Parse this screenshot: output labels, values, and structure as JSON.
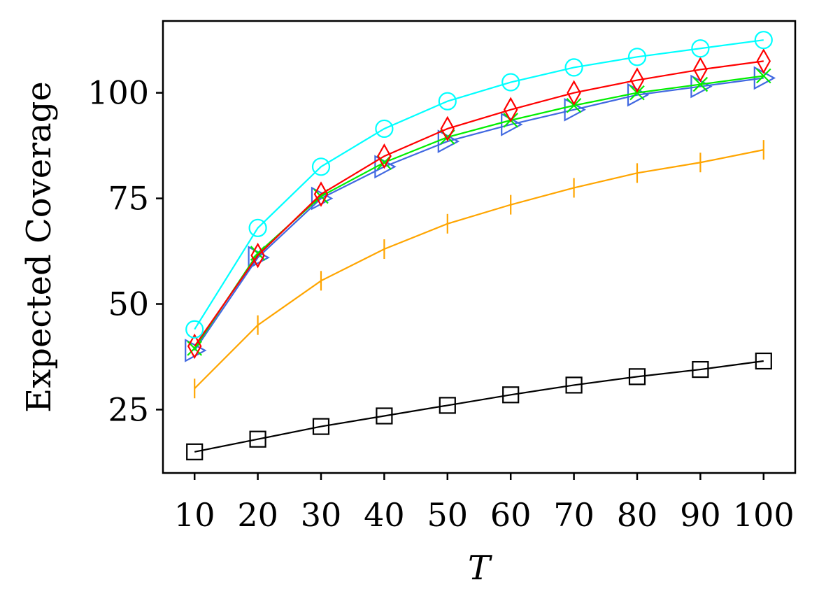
{
  "chart_data": {
    "type": "line",
    "title": "",
    "xlabel": "T",
    "ylabel": "Expected Coverage",
    "x": [
      10,
      20,
      30,
      40,
      50,
      60,
      70,
      80,
      90,
      100
    ],
    "xticks": [
      "10",
      "20",
      "30",
      "40",
      "50",
      "60",
      "70",
      "80",
      "90",
      "100"
    ],
    "yticks": [
      "25",
      "50",
      "75",
      "100"
    ],
    "ytick_values": [
      25,
      50,
      75,
      100
    ],
    "xlim": [
      5,
      105
    ],
    "ylim": [
      10,
      117
    ],
    "grid": false,
    "series": [
      {
        "name": "cyan-circle",
        "color": "#00ffff",
        "marker": "circle",
        "values": [
          44.0,
          68.0,
          82.5,
          91.5,
          98.0,
          102.5,
          106.0,
          108.5,
          110.5,
          112.5
        ]
      },
      {
        "name": "red-diamond",
        "color": "#ff0000",
        "marker": "diamond",
        "values": [
          40.0,
          61.5,
          76.0,
          85.0,
          91.5,
          96.0,
          100.0,
          103.0,
          105.5,
          107.5
        ]
      },
      {
        "name": "green-x",
        "color": "#00ee00",
        "marker": "x",
        "values": [
          39.5,
          62.0,
          75.5,
          83.5,
          89.5,
          93.5,
          97.0,
          100.0,
          102.0,
          104.0
        ]
      },
      {
        "name": "blue-triangle",
        "color": "#4169e1",
        "marker": "triangle-right",
        "values": [
          39.0,
          61.0,
          75.0,
          82.5,
          88.5,
          92.5,
          96.0,
          99.5,
          101.5,
          103.5
        ]
      },
      {
        "name": "orange-vline",
        "color": "#ffa500",
        "marker": "vline",
        "values": [
          30.0,
          45.0,
          55.5,
          63.0,
          69.0,
          73.5,
          77.5,
          81.0,
          83.5,
          86.5
        ]
      },
      {
        "name": "black-square",
        "color": "#000000",
        "marker": "square",
        "values": [
          15.0,
          18.0,
          21.0,
          23.5,
          26.0,
          28.5,
          30.8,
          32.8,
          34.5,
          36.5
        ]
      }
    ]
  }
}
